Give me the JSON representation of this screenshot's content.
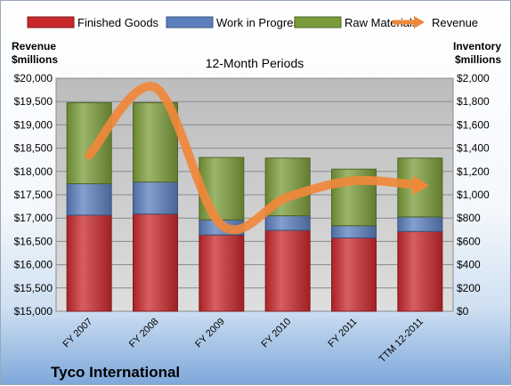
{
  "chart_data": {
    "type": "bar",
    "subtitle": "12-Month Periods",
    "company": "Tyco International",
    "categories": [
      "FY 2007",
      "FY 2008",
      "FY 2009",
      "FY 2010",
      "FY 2011",
      "TTM 12-2011"
    ],
    "stacked": true,
    "series": [
      {
        "name": "Finished Goods",
        "axis": "right",
        "color": "#c8282c",
        "values": [
          825,
          835,
          655,
          695,
          630,
          685
        ]
      },
      {
        "name": "Work in Progress",
        "axis": "right",
        "color": "#5b7fbd",
        "values": [
          270,
          275,
          130,
          125,
          105,
          125
        ]
      },
      {
        "name": "Raw Materials",
        "axis": "right",
        "color": "#7a9c3a",
        "values": [
          695,
          680,
          535,
          495,
          485,
          505
        ]
      },
      {
        "name": "Revenue",
        "axis": "left",
        "type": "line",
        "color": "#f0883a",
        "values": [
          18350,
          19800,
          16850,
          17450,
          17800,
          17700
        ]
      }
    ],
    "left_axis": {
      "title_lines": [
        "Revenue",
        "$millions"
      ],
      "ylim": [
        15000,
        20000
      ],
      "ticks": [
        "$15,000",
        "$15,500",
        "$16,000",
        "$16,500",
        "$17,000",
        "$17,500",
        "$18,000",
        "$18,500",
        "$19,000",
        "$19,500",
        "$20,000"
      ]
    },
    "right_axis": {
      "title_lines": [
        "Inventory",
        "$millions"
      ],
      "ylim": [
        0,
        2000
      ],
      "ticks": [
        "$0",
        "$200",
        "$400",
        "$600",
        "$800",
        "$1,000",
        "$1,200",
        "$1,400",
        "$1,600",
        "$1,800",
        "$2,000"
      ]
    },
    "legend": [
      "Finished Goods",
      "Work in Progress",
      "Raw Materials",
      "Revenue"
    ],
    "legend_position": "top",
    "grid": true,
    "plot_background": "#c0c0c0",
    "line_color": "#f0883a"
  }
}
